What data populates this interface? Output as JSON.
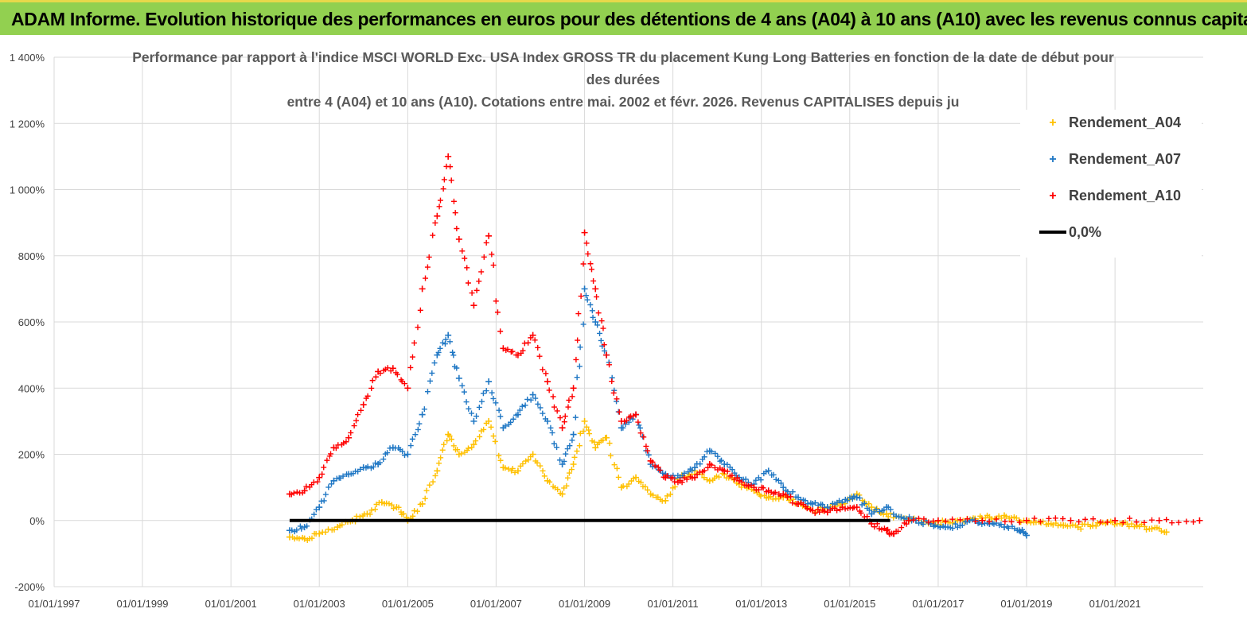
{
  "banner": {
    "title": "ADAM Informe. Evolution historique des performances en euros pour des détentions de 4 ans (A04) à 10 ans (A10) avec les revenus connus capitalisés"
  },
  "chart_data": {
    "type": "scatter",
    "title_lines": [
      "Performance par rapport à l'indice MSCI WORLD Exc. USA Index GROSS TR  du placement Kung Long Batteries  en fonction de la date de début pour",
      "des durées",
      "entre 4 (A04) et 10 ans (A10). Cotations entre mai. 2002 et févr. 2026. Revenus CAPITALISES depuis ju"
    ],
    "x_axis": {
      "type": "date",
      "range": [
        "1997-01-01",
        "2022-12-31"
      ],
      "tick_labels": [
        "01/01/1997",
        "01/01/1999",
        "01/01/2001",
        "01/01/2003",
        "01/01/2005",
        "01/01/2007",
        "01/01/2009",
        "01/01/2011",
        "01/01/2013",
        "01/01/2015",
        "01/01/2017",
        "01/01/2019",
        "01/01/2021"
      ]
    },
    "y_axis": {
      "unit": "percent",
      "range": [
        -200,
        1400
      ],
      "tick_values": [
        -200,
        0,
        200,
        400,
        600,
        800,
        1000,
        1200,
        1400
      ],
      "tick_labels": [
        "-200%",
        "0%",
        "200%",
        "400%",
        "600%",
        "800%",
        "1 000%",
        "1 200%",
        "1 400%"
      ]
    },
    "legend_position": "top-right",
    "series": [
      {
        "name": "Rendement_A04",
        "color": "#ffc000",
        "marker": "plus",
        "points": [
          [
            "2002-05-01",
            -50
          ],
          [
            "2002-09-01",
            -55
          ],
          [
            "2003-01-01",
            -40
          ],
          [
            "2003-06-01",
            -20
          ],
          [
            "2003-10-01",
            0
          ],
          [
            "2004-02-01",
            20
          ],
          [
            "2004-06-01",
            55
          ],
          [
            "2004-10-01",
            40
          ],
          [
            "2005-01-01",
            0
          ],
          [
            "2005-05-01",
            50
          ],
          [
            "2005-09-01",
            150
          ],
          [
            "2005-12-01",
            260
          ],
          [
            "2006-03-01",
            200
          ],
          [
            "2006-07-01",
            230
          ],
          [
            "2006-11-01",
            300
          ],
          [
            "2007-03-01",
            160
          ],
          [
            "2007-07-01",
            150
          ],
          [
            "2007-11-01",
            200
          ],
          [
            "2008-03-01",
            120
          ],
          [
            "2008-07-01",
            80
          ],
          [
            "2008-10-01",
            170
          ],
          [
            "2009-01-01",
            300
          ],
          [
            "2009-04-01",
            220
          ],
          [
            "2009-07-01",
            250
          ],
          [
            "2009-11-01",
            100
          ],
          [
            "2010-03-01",
            130
          ],
          [
            "2010-07-01",
            80
          ],
          [
            "2010-11-01",
            60
          ],
          [
            "2011-03-01",
            130
          ],
          [
            "2011-07-01",
            150
          ],
          [
            "2011-11-01",
            120
          ],
          [
            "2012-03-01",
            140
          ],
          [
            "2012-07-01",
            110
          ],
          [
            "2012-11-01",
            90
          ],
          [
            "2013-03-01",
            70
          ],
          [
            "2013-07-01",
            70
          ],
          [
            "2013-11-01",
            50
          ],
          [
            "2014-03-01",
            30
          ],
          [
            "2014-07-01",
            40
          ],
          [
            "2014-11-01",
            50
          ],
          [
            "2015-03-01",
            80
          ],
          [
            "2015-07-01",
            40
          ],
          [
            "2015-11-01",
            20
          ],
          [
            "2016-03-01",
            10
          ],
          [
            "2016-07-01",
            0
          ],
          [
            "2016-11-01",
            -10
          ],
          [
            "2017-03-01",
            -5
          ],
          [
            "2017-07-01",
            0
          ],
          [
            "2017-11-01",
            5
          ],
          [
            "2018-03-01",
            10
          ],
          [
            "2018-07-01",
            15
          ],
          [
            "2018-11-01",
            0
          ],
          [
            "2019-03-01",
            -5
          ],
          [
            "2019-07-01",
            -10
          ],
          [
            "2019-11-01",
            -15
          ],
          [
            "2020-03-01",
            -20
          ],
          [
            "2020-07-01",
            -15
          ],
          [
            "2020-11-01",
            -5
          ],
          [
            "2021-03-01",
            -10
          ],
          [
            "2021-07-01",
            -15
          ],
          [
            "2021-11-01",
            -25
          ],
          [
            "2022-03-01",
            -35
          ]
        ]
      },
      {
        "name": "Rendement_A07",
        "color": "#1f77c4",
        "marker": "plus",
        "points": [
          [
            "2002-05-01",
            -30
          ],
          [
            "2002-09-01",
            -20
          ],
          [
            "2003-01-01",
            40
          ],
          [
            "2003-05-01",
            120
          ],
          [
            "2003-09-01",
            140
          ],
          [
            "2004-01-01",
            160
          ],
          [
            "2004-05-01",
            170
          ],
          [
            "2004-09-01",
            220
          ],
          [
            "2005-01-01",
            200
          ],
          [
            "2005-05-01",
            320
          ],
          [
            "2005-09-01",
            500
          ],
          [
            "2005-12-01",
            560
          ],
          [
            "2006-03-01",
            430
          ],
          [
            "2006-07-01",
            300
          ],
          [
            "2006-11-01",
            420
          ],
          [
            "2007-03-01",
            280
          ],
          [
            "2007-07-01",
            320
          ],
          [
            "2007-11-01",
            380
          ],
          [
            "2008-03-01",
            300
          ],
          [
            "2008-07-01",
            170
          ],
          [
            "2008-10-01",
            260
          ],
          [
            "2009-01-01",
            700
          ],
          [
            "2009-04-01",
            600
          ],
          [
            "2009-07-01",
            500
          ],
          [
            "2009-11-01",
            280
          ],
          [
            "2010-03-01",
            320
          ],
          [
            "2010-07-01",
            170
          ],
          [
            "2010-11-01",
            140
          ],
          [
            "2011-03-01",
            130
          ],
          [
            "2011-07-01",
            160
          ],
          [
            "2011-11-01",
            210
          ],
          [
            "2012-03-01",
            170
          ],
          [
            "2012-07-01",
            130
          ],
          [
            "2012-11-01",
            110
          ],
          [
            "2013-03-01",
            150
          ],
          [
            "2013-07-01",
            100
          ],
          [
            "2013-11-01",
            70
          ],
          [
            "2014-03-01",
            50
          ],
          [
            "2014-07-01",
            40
          ],
          [
            "2014-11-01",
            55
          ],
          [
            "2015-03-01",
            70
          ],
          [
            "2015-07-01",
            20
          ],
          [
            "2015-11-01",
            40
          ],
          [
            "2016-03-01",
            10
          ],
          [
            "2016-07-01",
            0
          ],
          [
            "2016-11-01",
            -10
          ],
          [
            "2017-03-01",
            -20
          ],
          [
            "2017-07-01",
            -15
          ],
          [
            "2017-11-01",
            0
          ],
          [
            "2018-03-01",
            -10
          ],
          [
            "2018-07-01",
            -20
          ],
          [
            "2018-11-01",
            -30
          ],
          [
            "2019-01-01",
            -45
          ]
        ]
      },
      {
        "name": "Rendement_A10",
        "color": "#ff0000",
        "marker": "plus",
        "points": [
          [
            "2002-05-01",
            80
          ],
          [
            "2002-09-01",
            90
          ],
          [
            "2003-01-01",
            130
          ],
          [
            "2003-05-01",
            220
          ],
          [
            "2003-09-01",
            250
          ],
          [
            "2004-01-01",
            350
          ],
          [
            "2004-05-01",
            450
          ],
          [
            "2004-09-01",
            460
          ],
          [
            "2005-01-01",
            400
          ],
          [
            "2005-05-01",
            700
          ],
          [
            "2005-09-01",
            920
          ],
          [
            "2005-12-01",
            1100
          ],
          [
            "2006-03-01",
            850
          ],
          [
            "2006-07-01",
            650
          ],
          [
            "2006-11-01",
            860
          ],
          [
            "2007-03-01",
            520
          ],
          [
            "2007-07-01",
            500
          ],
          [
            "2007-11-01",
            560
          ],
          [
            "2008-03-01",
            420
          ],
          [
            "2008-07-01",
            280
          ],
          [
            "2008-10-01",
            400
          ],
          [
            "2009-01-01",
            870
          ],
          [
            "2009-04-01",
            700
          ],
          [
            "2009-07-01",
            500
          ],
          [
            "2009-11-01",
            300
          ],
          [
            "2010-03-01",
            320
          ],
          [
            "2010-07-01",
            180
          ],
          [
            "2010-11-01",
            130
          ],
          [
            "2011-03-01",
            120
          ],
          [
            "2011-07-01",
            130
          ],
          [
            "2011-11-01",
            170
          ],
          [
            "2012-03-01",
            150
          ],
          [
            "2012-07-01",
            120
          ],
          [
            "2012-11-01",
            100
          ],
          [
            "2013-03-01",
            90
          ],
          [
            "2013-07-01",
            80
          ],
          [
            "2013-11-01",
            50
          ],
          [
            "2014-03-01",
            30
          ],
          [
            "2014-07-01",
            25
          ],
          [
            "2014-11-01",
            40
          ],
          [
            "2015-03-01",
            40
          ],
          [
            "2015-07-01",
            -10
          ],
          [
            "2015-11-01",
            -30
          ],
          [
            "2016-01-01",
            -40
          ],
          [
            "2016-05-01",
            0
          ],
          [
            "2017-01-01",
            0
          ],
          [
            "2018-01-01",
            0
          ],
          [
            "2019-01-01",
            0
          ],
          [
            "2020-01-01",
            0
          ],
          [
            "2021-01-01",
            0
          ],
          [
            "2022-01-01",
            0
          ],
          [
            "2022-12-01",
            0
          ]
        ]
      },
      {
        "name": "0,0%",
        "color": "#000000",
        "marker": "line",
        "points": [
          [
            "2002-05-01",
            0
          ],
          [
            "2015-12-01",
            0
          ]
        ]
      }
    ]
  }
}
